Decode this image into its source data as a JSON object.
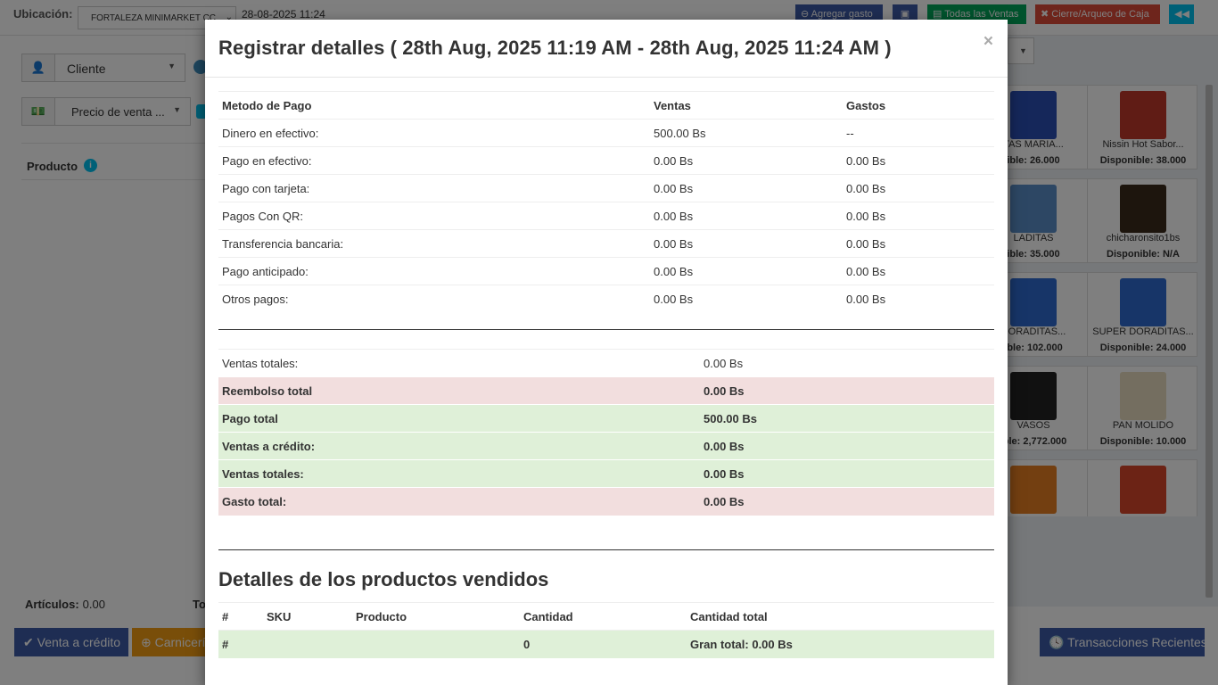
{
  "topbar": {
    "location_label": "Ubicación:",
    "location_value": "FORTALEZA MINIMARKET CC",
    "datetime": "28-08-2025 11:24",
    "add_expense": "Agregar gasto",
    "all_sales": "Todas las Ventas",
    "close_register": "Cierre/Arqueo de Caja"
  },
  "left": {
    "customer": "Cliente",
    "price_group": "Precio de venta ...",
    "product_header": "Producto",
    "items_label": "Artículos:",
    "items_value": "0.00",
    "total_label": "To"
  },
  "bottom": {
    "credit_sale": "Venta a crédito",
    "butcher": "Carnicería",
    "recent_transactions": "Transacciones Recientes"
  },
  "products": [
    {
      "name": "TAS MARIA...",
      "stock": "ible: 26.000",
      "color": "#2a4fb5"
    },
    {
      "name": "Nissin Hot Sabor...",
      "stock": "Disponible: 38.000",
      "color": "#c0392b"
    },
    {
      "name": "LADITAS",
      "stock": "ible: 35.000",
      "color": "#5a8fc9"
    },
    {
      "name": "chicharonsito1bs",
      "stock": "Disponible: N/A",
      "color": "#3b2a1a"
    },
    {
      "name": "DORADITAS...",
      "stock": "ible: 102.000",
      "color": "#2e6bd1"
    },
    {
      "name": "SUPER DORADITAS...",
      "stock": "Disponible: 24.000",
      "color": "#2e6bd1"
    },
    {
      "name": "VASOS",
      "stock": "ible: 2,772.000",
      "color": "#222222"
    },
    {
      "name": "PAN MOLIDO",
      "stock": "Disponible: 10.000",
      "color": "#e8dcc0"
    },
    {
      "name": "",
      "stock": "",
      "color": "#e67e22"
    },
    {
      "name": "",
      "stock": "",
      "color": "#d9472b"
    }
  ],
  "modal": {
    "title": "Registrar detalles ( 28th Aug, 2025 11:19 AM - 28th Aug, 2025 11:24 AM )",
    "close": "×",
    "payments": {
      "headers": [
        "Metodo de Pago",
        "Ventas",
        "Gastos"
      ],
      "rows": [
        [
          "Dinero en efectivo:",
          "500.00 Bs",
          "--"
        ],
        [
          "Pago en efectivo:",
          "0.00 Bs",
          "0.00 Bs"
        ],
        [
          "Pago con tarjeta:",
          "0.00 Bs",
          "0.00 Bs"
        ],
        [
          "Pagos Con QR:",
          "0.00 Bs",
          "0.00 Bs"
        ],
        [
          "Transferencia bancaria:",
          "0.00 Bs",
          "0.00 Bs"
        ],
        [
          "Pago anticipado:",
          "0.00 Bs",
          "0.00 Bs"
        ],
        [
          "Otros pagos:",
          "0.00 Bs",
          "0.00 Bs"
        ]
      ]
    },
    "summary": [
      {
        "label": "Ventas totales:",
        "value": "0.00 Bs",
        "style": "plain"
      },
      {
        "label": "Reembolso total",
        "value": "0.00 Bs",
        "style": "danger"
      },
      {
        "label": "Pago total",
        "value": "500.00 Bs",
        "style": "success"
      },
      {
        "label": "Ventas a crédito:",
        "value": "0.00 Bs",
        "style": "success"
      },
      {
        "label": "Ventas totales:",
        "value": "0.00 Bs",
        "style": "success"
      },
      {
        "label": "Gasto total:",
        "value": "0.00 Bs",
        "style": "danger"
      }
    ],
    "details_title": "Detalles de los productos vendidos",
    "details": {
      "headers": [
        "#",
        "SKU",
        "Producto",
        "Cantidad",
        "Cantidad total"
      ],
      "total_row": [
        "#",
        "",
        "",
        "0",
        "Gran total: 0.00 Bs"
      ]
    }
  }
}
